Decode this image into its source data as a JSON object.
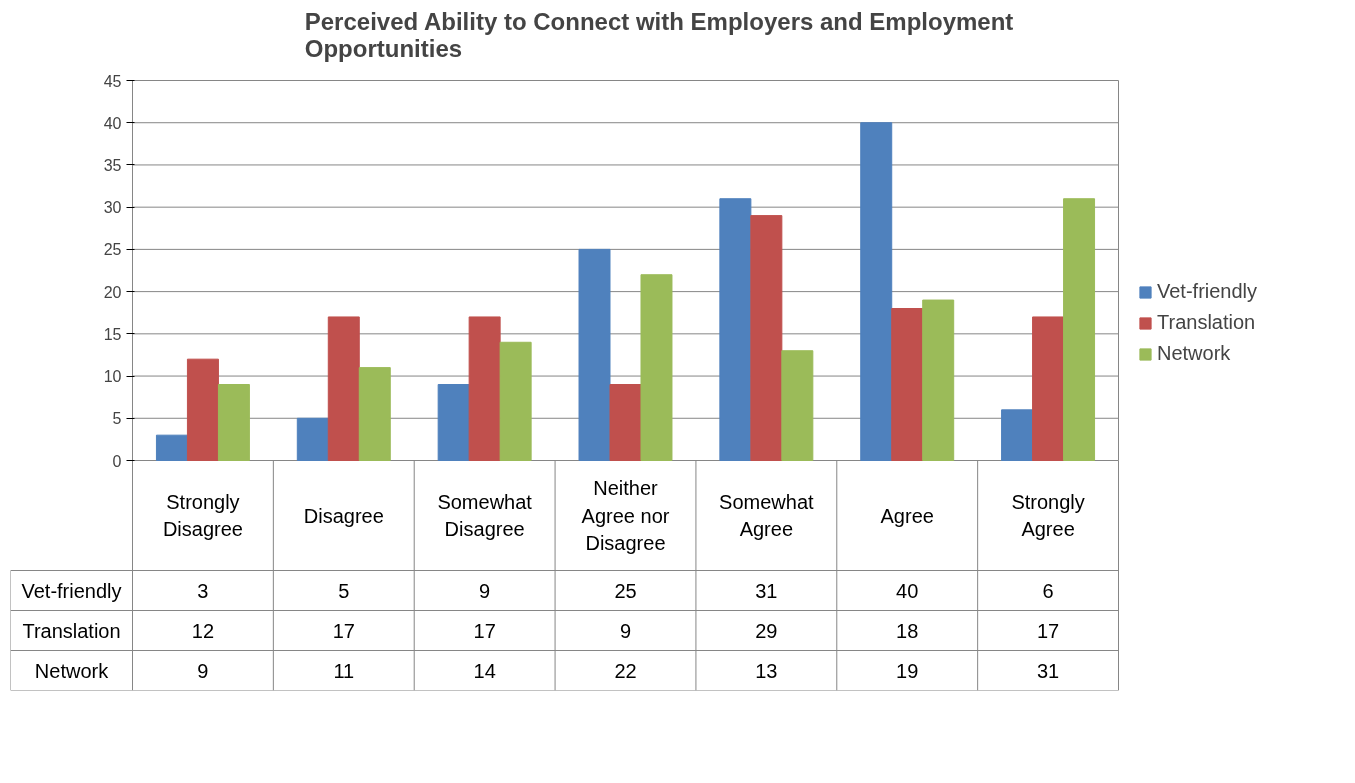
{
  "chart_data": {
    "type": "bar",
    "title": "Perceived Ability to Connect with Employers and Employment Opportunities",
    "categories": [
      "Strongly Disagree",
      "Disagree",
      "Somewhat Disagree",
      "Neither Agree nor Disagree",
      "Somewhat Agree",
      "Agree",
      "Strongly Agree"
    ],
    "series": [
      {
        "name": "Vet-friendly",
        "color": "#4f81bd",
        "values": [
          3,
          5,
          9,
          25,
          31,
          40,
          6
        ]
      },
      {
        "name": "Translation",
        "color": "#c0504d",
        "values": [
          12,
          17,
          17,
          9,
          29,
          18,
          17
        ]
      },
      {
        "name": "Network",
        "color": "#9bbb59",
        "values": [
          9,
          11,
          14,
          22,
          13,
          19,
          31
        ]
      }
    ],
    "ylim": [
      0,
      45
    ],
    "yticks": [
      0,
      5,
      10,
      15,
      20,
      25,
      30,
      35,
      40,
      45
    ],
    "grid": "y",
    "legend": "right",
    "data_labels": true
  }
}
